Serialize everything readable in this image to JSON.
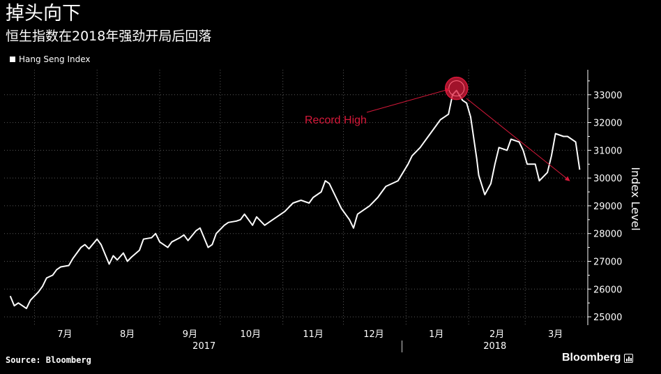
{
  "header": {
    "title": "掉头向下",
    "subtitle": "恒生指数在2018年强劲开局后回落"
  },
  "footer": {
    "source": "Source: Bloomberg",
    "brand": "Bloomberg"
  },
  "colors": {
    "background": "#000000",
    "line": "#ffffff",
    "grid": "#5a5a5a",
    "accent": "#d7193a"
  },
  "chart_data": {
    "type": "line",
    "ylabel": "Index Level",
    "ylim": [
      24700,
      33900
    ],
    "y_ticks": [
      25000,
      26000,
      27000,
      28000,
      29000,
      30000,
      31000,
      32000,
      33000
    ],
    "y_tick_labels": [
      "25000",
      "26000",
      "27000",
      "28000",
      "29000",
      "30000",
      "31000",
      "32000",
      "33000"
    ],
    "y_axis_position": "right",
    "grid": true,
    "legend": "top-left",
    "x_month_labels": [
      "7月",
      "8月",
      "9月",
      "10月",
      "11月",
      "12月",
      "1月",
      "2月",
      "3月"
    ],
    "x_year_labels": [
      "2017",
      "2018"
    ],
    "annotation": {
      "text": "Record High",
      "point_date": "2018-01-26",
      "point_value": 33154,
      "arrow_end_date": "2018-03-23",
      "arrow_end_value": 29900
    },
    "series": [
      {
        "name": "Hang Seng Index",
        "x": [
          "2017-06-19",
          "2017-06-21",
          "2017-06-23",
          "2017-06-27",
          "2017-06-29",
          "2017-07-03",
          "2017-07-05",
          "2017-07-07",
          "2017-07-10",
          "2017-07-12",
          "2017-07-14",
          "2017-07-18",
          "2017-07-20",
          "2017-07-24",
          "2017-07-26",
          "2017-07-28",
          "2017-08-01",
          "2017-08-03",
          "2017-08-07",
          "2017-08-09",
          "2017-08-11",
          "2017-08-14",
          "2017-08-16",
          "2017-08-18",
          "2017-08-22",
          "2017-08-24",
          "2017-08-28",
          "2017-08-30",
          "2017-09-01",
          "2017-09-05",
          "2017-09-07",
          "2017-09-11",
          "2017-09-13",
          "2017-09-15",
          "2017-09-19",
          "2017-09-21",
          "2017-09-25",
          "2017-09-27",
          "2017-09-29",
          "2017-10-03",
          "2017-10-05",
          "2017-10-09",
          "2017-10-11",
          "2017-10-13",
          "2017-10-17",
          "2017-10-19",
          "2017-10-23",
          "2017-10-25",
          "2017-10-27",
          "2017-10-31",
          "2017-11-02",
          "2017-11-06",
          "2017-11-08",
          "2017-11-10",
          "2017-11-14",
          "2017-11-16",
          "2017-11-20",
          "2017-11-22",
          "2017-11-24",
          "2017-11-28",
          "2017-11-30",
          "2017-12-04",
          "2017-12-06",
          "2017-12-08",
          "2017-12-12",
          "2017-12-14",
          "2017-12-18",
          "2017-12-20",
          "2017-12-22",
          "2017-12-28",
          "2018-01-02",
          "2018-01-04",
          "2018-01-08",
          "2018-01-10",
          "2018-01-12",
          "2018-01-16",
          "2018-01-18",
          "2018-01-22",
          "2018-01-24",
          "2018-01-26",
          "2018-01-29",
          "2018-01-31",
          "2018-02-02",
          "2018-02-05",
          "2018-02-06",
          "2018-02-09",
          "2018-02-12",
          "2018-02-14",
          "2018-02-16",
          "2018-02-20",
          "2018-02-22",
          "2018-02-26",
          "2018-02-28",
          "2018-03-02",
          "2018-03-06",
          "2018-03-08",
          "2018-03-12",
          "2018-03-14",
          "2018-03-16",
          "2018-03-20",
          "2018-03-22",
          "2018-03-26",
          "2018-03-28"
        ],
        "values": [
          25750,
          25400,
          25500,
          25300,
          25600,
          25900,
          26100,
          26400,
          26500,
          26700,
          26800,
          26850,
          27100,
          27500,
          27600,
          27450,
          27800,
          27600,
          26900,
          27200,
          27050,
          27300,
          27000,
          27150,
          27400,
          27800,
          27850,
          28000,
          27700,
          27500,
          27700,
          27850,
          27950,
          27750,
          28100,
          28200,
          27500,
          27600,
          28000,
          28300,
          28400,
          28450,
          28500,
          28700,
          28300,
          28600,
          28300,
          28400,
          28500,
          28700,
          28800,
          29100,
          29150,
          29200,
          29100,
          29300,
          29500,
          29900,
          29800,
          29200,
          28900,
          28500,
          28200,
          28700,
          28900,
          29000,
          29300,
          29500,
          29700,
          29900,
          30500,
          30800,
          31100,
          31300,
          31500,
          31900,
          32100,
          32300,
          33000,
          33154,
          32800,
          32700,
          32200,
          30700,
          30100,
          29400,
          29800,
          30500,
          31100,
          31000,
          31400,
          31300,
          31000,
          30500,
          30500,
          29900,
          30200,
          30800,
          31600,
          31500,
          31500,
          31300,
          30300
        ]
      }
    ]
  }
}
